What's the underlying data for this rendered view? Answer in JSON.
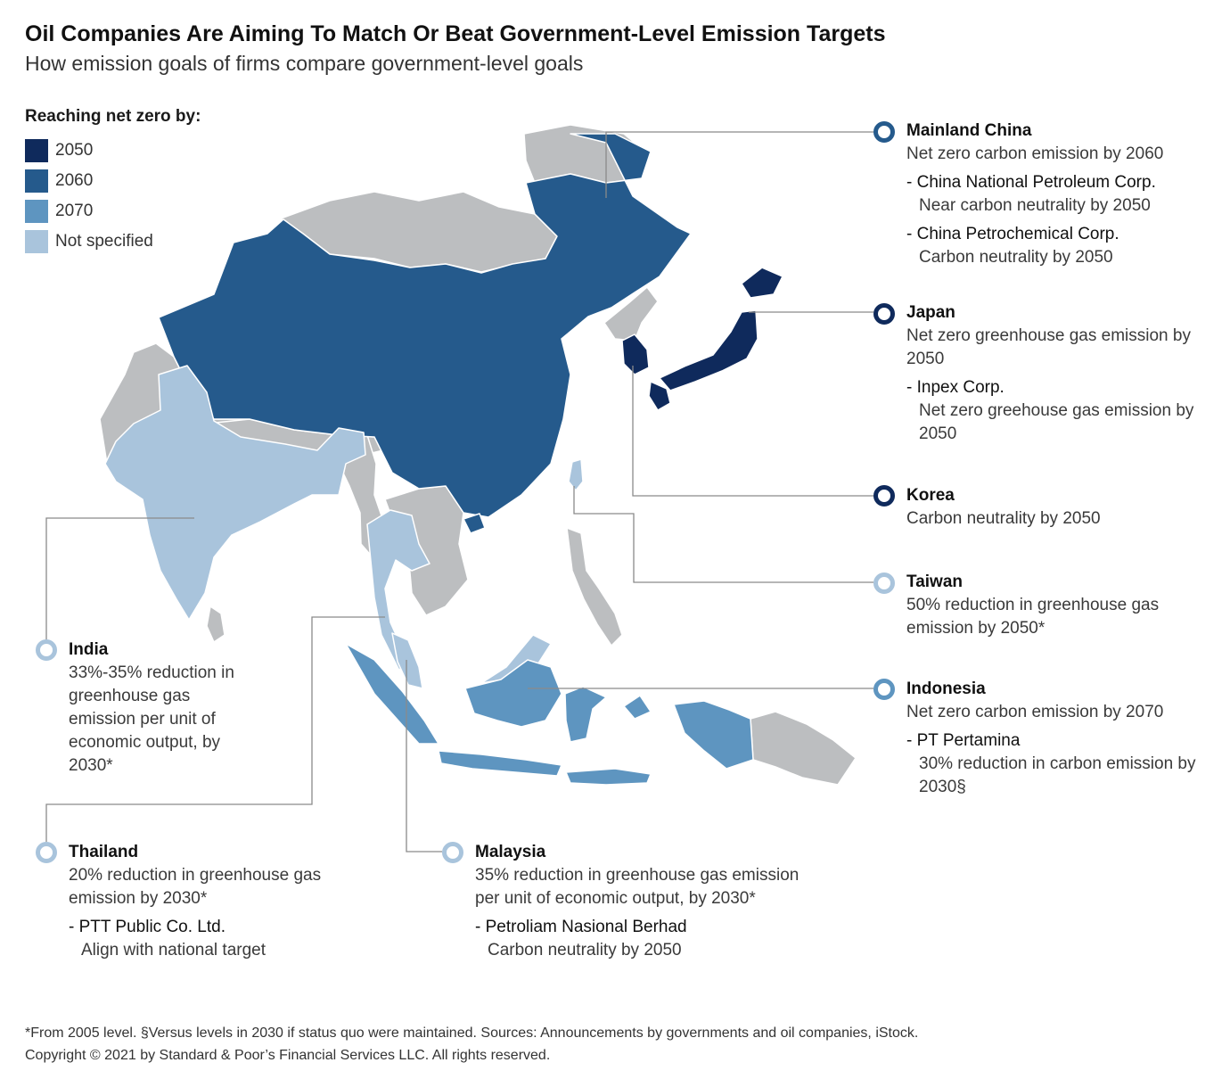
{
  "title": "Oil Companies Are Aiming To Match Or Beat Government-Level Emission Targets",
  "subtitle": "How emission goals of firms compare government-level goals",
  "legend": {
    "title": "Reaching net zero by:",
    "items": [
      {
        "label": "2050",
        "color": "#0f2a5c"
      },
      {
        "label": "2060",
        "color": "#255a8c"
      },
      {
        "label": "2070",
        "color": "#5e95c0"
      },
      {
        "label": "Not specified",
        "color": "#a9c4dc"
      }
    ]
  },
  "colors": {
    "other_land": "#bcbec0",
    "leader_line": "#8a8a8a"
  },
  "callouts": [
    {
      "id": "china",
      "name": "Mainland China",
      "goal": "Net zero carbon emission by 2060",
      "category": "2060",
      "companies": [
        {
          "name": "China National Petroleum Corp.",
          "target": "Near carbon neutrality by 2050"
        },
        {
          "name": "China Petrochemical Corp.",
          "target": "Carbon neutrality by 2050"
        }
      ]
    },
    {
      "id": "japan",
      "name": "Japan",
      "goal": "Net zero greenhouse gas emission by 2050",
      "category": "2050",
      "companies": [
        {
          "name": "Inpex Corp.",
          "target": "Net zero greehouse gas emission by 2050"
        }
      ]
    },
    {
      "id": "korea",
      "name": "Korea",
      "goal": "Carbon neutrality by 2050",
      "category": "2050",
      "companies": []
    },
    {
      "id": "taiwan",
      "name": "Taiwan",
      "goal": "50% reduction in greenhouse gas emission by 2050*",
      "category": "Not specified",
      "companies": []
    },
    {
      "id": "indonesia",
      "name": "Indonesia",
      "goal": "Net zero carbon emission by 2070",
      "category": "2070",
      "companies": [
        {
          "name": "PT Pertamina",
          "target": "30% reduction in carbon emission by 2030§"
        }
      ]
    },
    {
      "id": "india",
      "name": "India",
      "goal": "33%-35% reduction in greenhouse gas emission per unit of economic output, by 2030*",
      "category": "Not specified",
      "companies": []
    },
    {
      "id": "thailand",
      "name": "Thailand",
      "goal": "20% reduction in greenhouse gas emission by 2030*",
      "category": "Not specified",
      "companies": [
        {
          "name": "PTT Public Co. Ltd.",
          "target": "Align with national target"
        }
      ]
    },
    {
      "id": "malaysia",
      "name": "Malaysia",
      "goal": "35% reduction in greenhouse gas emission per unit of economic output, by 2030*",
      "category": "Not specified",
      "companies": [
        {
          "name": "Petroliam Nasional Berhad",
          "target": "Carbon neutrality by 2050"
        }
      ]
    }
  ],
  "footnote": [
    "*From 2005 level. §Versus levels in 2030 if status quo were maintained. Sources: Announcements by governments and oil companies, iStock.",
    "Copyright © 2021 by Standard & Poor’s Financial Services LLC. All rights reserved."
  ]
}
